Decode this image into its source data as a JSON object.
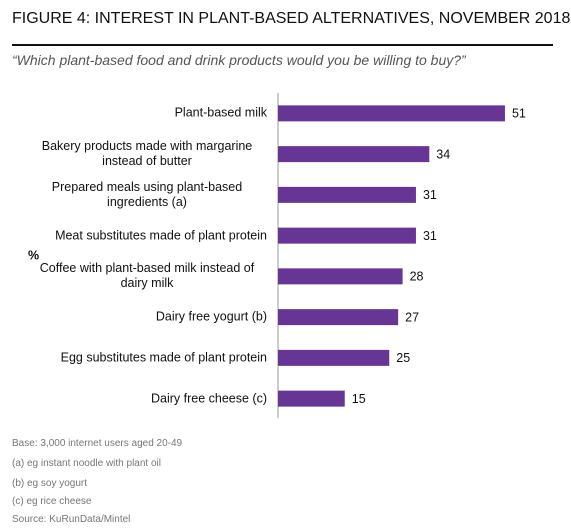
{
  "chart_data": {
    "type": "hbar",
    "title": "FIGURE 4: INTEREST IN PLANT-BASED ALTERNATIVES, NOVEMBER 2018",
    "subtitle": "“Which plant-based food and drink products would you be willing to buy?”",
    "y_label": "%",
    "categories": [
      "Plant-based milk",
      "Bakery products made with margarine instead of butter",
      "Prepared meals using plant-based ingredients (a)",
      "Meat substitutes made of plant protein",
      "Coffee with plant-based milk instead of dairy milk",
      "Dairy free yogurt (b)",
      "Egg substitutes made of plant protein",
      "Dairy free cheese (c)"
    ],
    "values": [
      51,
      34,
      31,
      31,
      28,
      27,
      25,
      15
    ],
    "color": "#673694",
    "xlim": [
      0,
      60
    ],
    "notes": [
      "Base: 3,000 internet users aged 20-49",
      "(a) eg instant noodle with plant oil",
      "(b) eg soy yogurt",
      "(c) eg rice cheese"
    ],
    "source": "Source: KuRunData/Mintel"
  }
}
